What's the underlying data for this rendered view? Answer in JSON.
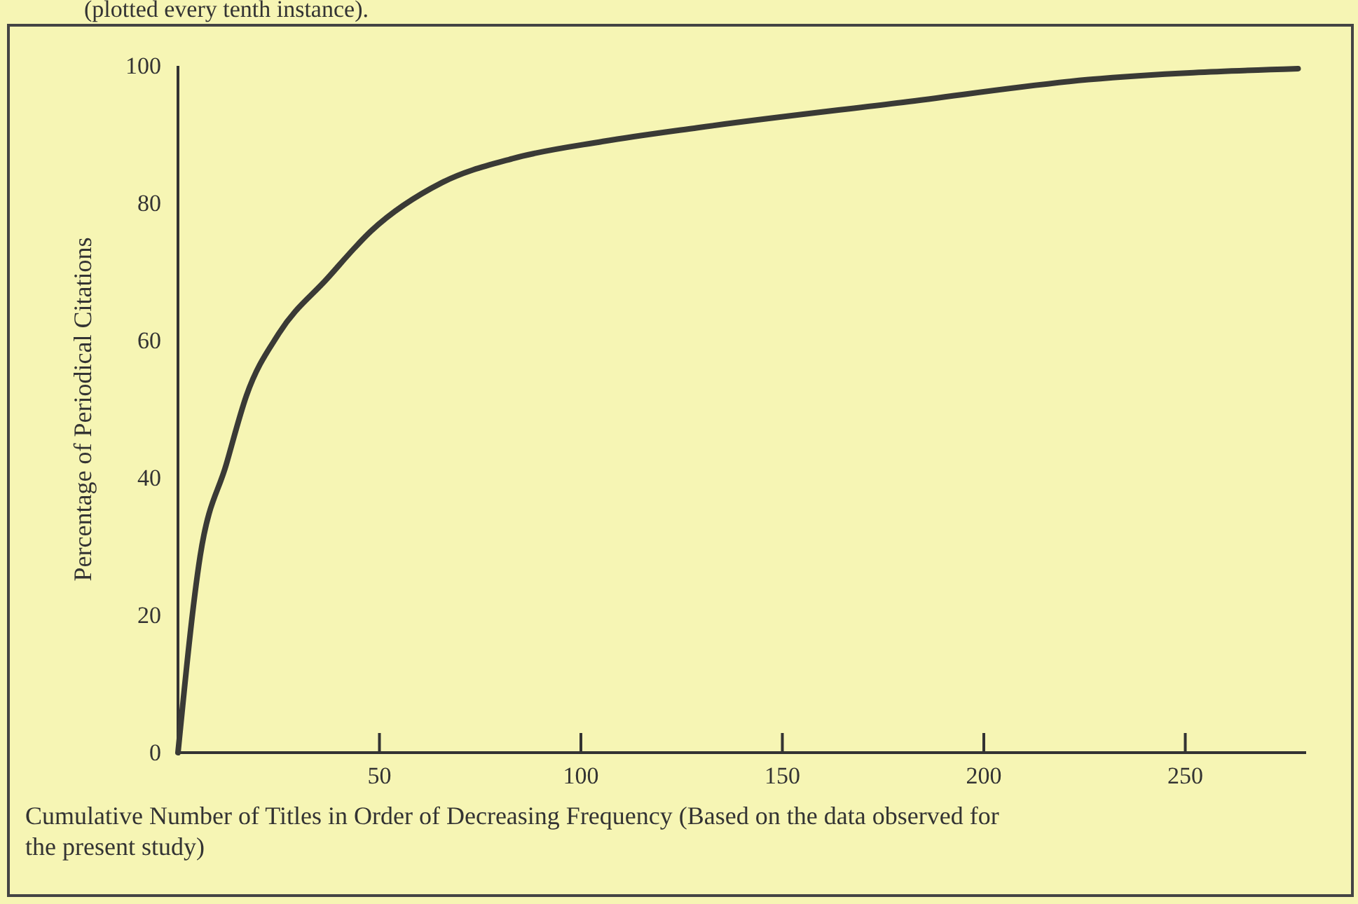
{
  "chart_data": {
    "type": "line",
    "annotations": [
      "(plotted every tenth instance)."
    ],
    "xlabel": "Cumulative Number of Titles in Order of Decreasing Frequency (Based on the data observed for the present study)",
    "ylabel": "Percentage of Periodical Citations",
    "x": [
      0,
      5.5,
      12,
      17,
      25,
      37,
      48,
      65.5,
      83,
      105.5,
      129,
      180,
      226,
      278
    ],
    "series": [
      {
        "color": "#3a3a36",
        "values": [
          0,
          28.6,
          42,
          52,
          61,
          69,
          76,
          83,
          86.5,
          89,
          91,
          94.7,
          98,
          99.6
        ]
      }
    ],
    "xlim": [
      0,
      280
    ],
    "ylim": [
      0,
      100
    ],
    "xticks": [
      50,
      100,
      150,
      200,
      250
    ],
    "yticks": [
      0,
      20,
      40,
      60,
      80,
      100
    ],
    "grid": false,
    "marker": "none",
    "line_style": "solid"
  }
}
